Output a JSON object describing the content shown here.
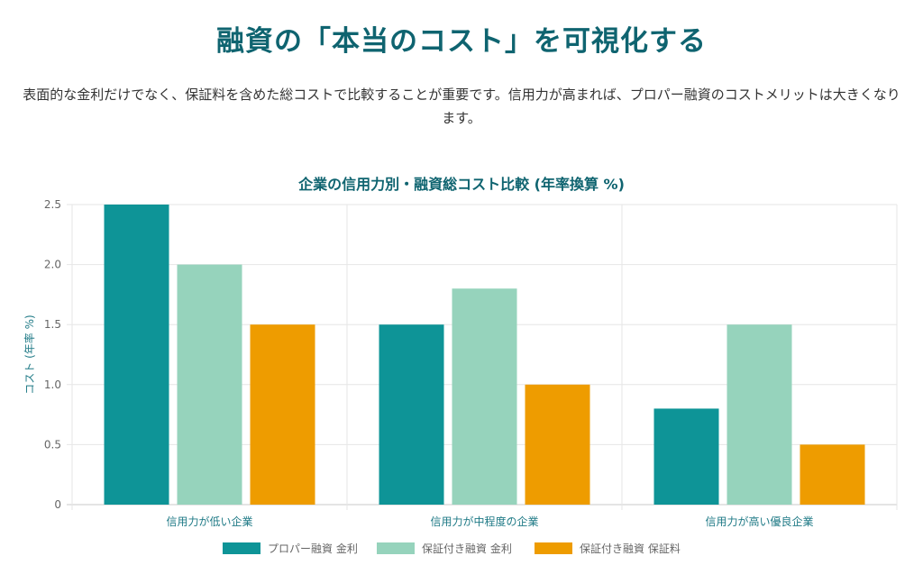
{
  "page": {
    "title": "融資の「本当のコスト」を可視化する",
    "intro": "表面的な金利だけでなく、保証料を含めた総コストで比較することが重要です。信用力が高まれば、プロパー融資のコストメリットは大きくなります。"
  },
  "chart_data": {
    "type": "bar",
    "title": "企業の信用力別・融資総コスト比較 (年率換算 %)",
    "xlabel": "",
    "ylabel": "コスト (年率 %)",
    "categories": [
      "信用力が低い企業",
      "信用力が中程度の企業",
      "信用力が高い優良企業"
    ],
    "series": [
      {
        "name": "プロパー融資 金利",
        "values": [
          2.5,
          1.5,
          0.8
        ],
        "color": "#0e9497"
      },
      {
        "name": "保証付き融資 金利",
        "values": [
          2.0,
          1.8,
          1.5
        ],
        "color": "#96d3bc"
      },
      {
        "name": "保証付き融資 保証料",
        "values": [
          1.5,
          1.0,
          0.5
        ],
        "color": "#ee9c00"
      }
    ],
    "ylim": [
      0,
      2.5
    ],
    "yticks": [
      "0",
      "0.5",
      "1.0",
      "1.5",
      "2.0",
      "2.5"
    ],
    "grid": true,
    "legend_position": "bottom"
  }
}
